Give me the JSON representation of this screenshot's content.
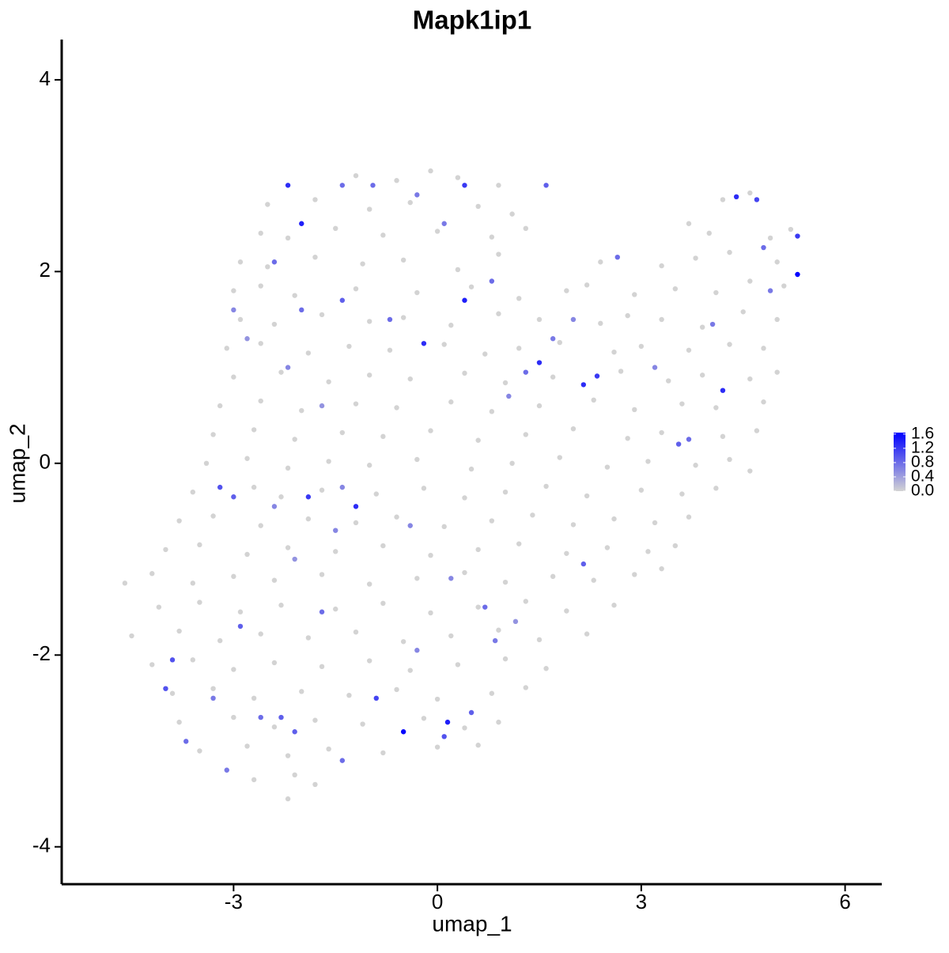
{
  "chart_data": {
    "type": "scatter",
    "title": "Mapk1ip1",
    "x_label": "umap_1",
    "y_label": "umap_2",
    "xlim": [
      -5.53,
      6.54
    ],
    "ylim": [
      -4.39,
      4.42
    ],
    "xticks": [
      -3,
      0,
      3,
      6
    ],
    "yticks": [
      -4,
      -2,
      0,
      2,
      4
    ],
    "low_color": "#d3d3d3",
    "high_color": "#0000ff",
    "colorlim": [
      0,
      1.64
    ],
    "colorticks": [
      {
        "value": 0,
        "label": "0.0"
      },
      0.4,
      0.8,
      1.2,
      1.6
    ],
    "x": [
      -1.2,
      -0.6,
      -0.1,
      0.3,
      0.9,
      -2.5,
      -1.8,
      -1.0,
      -0.4,
      0.6,
      1.1,
      4.2,
      4.6,
      -2.6,
      -2.2,
      -1.5,
      -0.8,
      0.0,
      0.8,
      1.3,
      3.7,
      4.0,
      4.9,
      5.2,
      -2.9,
      -2.5,
      -1.8,
      -1.1,
      -0.5,
      0.3,
      0.9,
      2.4,
      3.3,
      3.8,
      4.3,
      5.0,
      -3.0,
      -2.6,
      -2.1,
      -1.2,
      -0.3,
      0.5,
      1.2,
      1.9,
      2.2,
      2.9,
      3.5,
      4.1,
      4.6,
      5.1,
      -2.9,
      -2.4,
      -1.7,
      -1.0,
      -0.5,
      0.2,
      0.9,
      1.5,
      2.4,
      2.8,
      3.3,
      3.9,
      4.5,
      5.0,
      -3.1,
      -2.6,
      -1.9,
      -1.3,
      -0.7,
      0.1,
      0.7,
      1.2,
      1.8,
      2.6,
      3.0,
      3.7,
      4.3,
      4.8,
      -3.0,
      -2.3,
      -1.6,
      -1.0,
      -0.4,
      0.4,
      1.0,
      1.7,
      2.7,
      3.4,
      3.9,
      4.6,
      5.0,
      -3.2,
      -2.6,
      -2.0,
      -1.2,
      -0.6,
      0.2,
      0.8,
      1.5,
      2.3,
      2.9,
      3.6,
      4.1,
      4.8,
      -3.3,
      -2.7,
      -2.1,
      -1.4,
      -0.8,
      -0.1,
      0.6,
      1.3,
      2.0,
      2.8,
      3.3,
      4.2,
      4.7,
      -3.4,
      -2.8,
      -2.2,
      -1.6,
      -1.0,
      -0.3,
      0.5,
      1.1,
      1.8,
      2.5,
      3.1,
      3.8,
      4.3,
      4.6,
      -3.6,
      -2.7,
      -2.3,
      -1.7,
      -0.9,
      -0.2,
      0.4,
      1.0,
      1.6,
      2.2,
      3.0,
      3.6,
      4.1,
      -3.8,
      -3.3,
      -2.6,
      -1.9,
      -1.2,
      -0.6,
      0.1,
      0.8,
      1.4,
      2.0,
      2.6,
      3.2,
      3.7,
      -4.0,
      -3.5,
      -2.8,
      -2.2,
      -1.5,
      -0.8,
      -0.1,
      0.6,
      1.2,
      1.9,
      2.5,
      3.1,
      3.5,
      -4.6,
      -4.2,
      -3.6,
      -3.0,
      -2.4,
      -1.7,
      -1.0,
      -0.3,
      0.4,
      1.0,
      1.7,
      2.3,
      2.9,
      3.3,
      -4.1,
      -3.5,
      -2.9,
      -2.3,
      -1.5,
      -0.8,
      -0.1,
      0.6,
      1.3,
      1.9,
      2.6,
      -4.5,
      -3.8,
      -3.2,
      -2.6,
      -1.9,
      -1.2,
      -0.5,
      0.2,
      0.9,
      1.5,
      2.2,
      -4.2,
      -3.6,
      -3.0,
      -2.4,
      -1.7,
      -1.0,
      -0.4,
      0.3,
      1.0,
      1.6,
      -3.9,
      -3.3,
      -2.7,
      -2.0,
      -1.3,
      -0.6,
      0.0,
      0.8,
      1.3,
      -3.8,
      -3.0,
      -2.4,
      -1.8,
      -1.1,
      -0.2,
      0.4,
      0.9,
      -3.5,
      -2.8,
      -2.2,
      -1.6,
      -0.8,
      0.0,
      0.6,
      -2.7,
      -2.1,
      -1.8,
      -2.2,
      -2.2,
      -2.0,
      0.4,
      1.6,
      0.4,
      -0.2,
      1.5,
      2.15,
      2.35,
      4.2,
      5.3,
      5.3,
      4.4,
      4.7,
      -1.2,
      -1.9,
      -0.5,
      0.15,
      0.1,
      -0.9,
      -3.2,
      -3.0,
      -2.9,
      -3.9,
      -4.0,
      -2.3,
      -2.6,
      -2.1,
      0.5,
      0.85,
      2.15,
      3.55,
      3.7,
      0.7,
      -1.7,
      -2.4,
      -2.0,
      -1.4,
      -0.7,
      0.8,
      1.3,
      1.05,
      1.7,
      2.0,
      2.65,
      3.2,
      4.05,
      4.8,
      4.9,
      -1.4,
      -0.3,
      -0.95,
      0.1,
      -3.0,
      -2.8,
      -2.2,
      -1.7,
      -2.4,
      -2.1,
      -1.5,
      -0.4,
      0.2,
      -0.3,
      1.15,
      -3.3,
      -3.7,
      -3.1,
      -1.4,
      -1.4
    ],
    "y": [
      3.0,
      2.95,
      3.05,
      2.98,
      2.9,
      2.7,
      2.75,
      2.65,
      2.72,
      2.68,
      2.6,
      2.75,
      2.82,
      2.4,
      2.35,
      2.45,
      2.38,
      2.42,
      2.36,
      2.45,
      2.5,
      2.4,
      2.35,
      2.44,
      2.1,
      2.05,
      2.15,
      2.08,
      2.12,
      2.02,
      2.18,
      2.1,
      2.06,
      2.14,
      2.2,
      2.1,
      1.8,
      1.85,
      1.75,
      1.82,
      1.78,
      1.84,
      1.72,
      1.8,
      1.86,
      1.76,
      1.82,
      1.78,
      1.9,
      1.85,
      1.5,
      1.45,
      1.55,
      1.48,
      1.52,
      1.44,
      1.56,
      1.5,
      1.46,
      1.54,
      1.5,
      1.42,
      1.58,
      1.5,
      1.2,
      1.25,
      1.15,
      1.22,
      1.18,
      1.24,
      1.14,
      1.2,
      1.26,
      1.16,
      1.22,
      1.18,
      1.24,
      1.2,
      0.9,
      0.95,
      0.85,
      0.92,
      0.88,
      0.94,
      0.84,
      0.9,
      0.96,
      0.86,
      0.92,
      0.88,
      0.95,
      0.6,
      0.65,
      0.55,
      0.62,
      0.58,
      0.64,
      0.54,
      0.6,
      0.66,
      0.56,
      0.62,
      0.58,
      0.64,
      0.3,
      0.35,
      0.25,
      0.32,
      0.28,
      0.34,
      0.24,
      0.3,
      0.36,
      0.26,
      0.32,
      0.28,
      0.34,
      0.0,
      0.05,
      -0.05,
      0.02,
      -0.02,
      0.04,
      -0.06,
      0.0,
      0.06,
      -0.04,
      0.02,
      -0.02,
      0.04,
      -0.08,
      -0.3,
      -0.25,
      -0.35,
      -0.28,
      -0.32,
      -0.26,
      -0.36,
      -0.3,
      -0.24,
      -0.34,
      -0.28,
      -0.32,
      -0.26,
      -0.6,
      -0.55,
      -0.65,
      -0.58,
      -0.62,
      -0.56,
      -0.66,
      -0.6,
      -0.54,
      -0.64,
      -0.58,
      -0.62,
      -0.56,
      -0.9,
      -0.85,
      -0.95,
      -0.88,
      -0.92,
      -0.86,
      -0.96,
      -0.9,
      -0.84,
      -0.94,
      -0.88,
      -0.92,
      -0.86,
      -1.25,
      -1.15,
      -1.25,
      -1.18,
      -1.22,
      -1.16,
      -1.26,
      -1.2,
      -1.14,
      -1.24,
      -1.18,
      -1.22,
      -1.16,
      -1.1,
      -1.5,
      -1.45,
      -1.55,
      -1.48,
      -1.52,
      -1.46,
      -1.56,
      -1.5,
      -1.44,
      -1.54,
      -1.48,
      -1.8,
      -1.75,
      -1.85,
      -1.78,
      -1.82,
      -1.76,
      -1.86,
      -1.8,
      -1.74,
      -1.84,
      -1.78,
      -2.1,
      -2.05,
      -2.15,
      -2.08,
      -2.12,
      -2.06,
      -2.16,
      -2.1,
      -2.04,
      -2.14,
      -2.4,
      -2.35,
      -2.45,
      -2.38,
      -2.42,
      -2.36,
      -2.46,
      -2.4,
      -2.34,
      -2.7,
      -2.65,
      -2.75,
      -2.68,
      -2.72,
      -2.66,
      -2.76,
      -2.7,
      -3.0,
      -2.95,
      -3.05,
      -2.98,
      -3.02,
      -2.96,
      -2.94,
      -3.3,
      -3.25,
      -3.35,
      -3.5,
      2.9,
      2.5,
      2.9,
      2.9,
      1.7,
      1.25,
      1.05,
      0.82,
      0.91,
      0.76,
      1.97,
      2.37,
      2.78,
      2.75,
      -0.45,
      -0.35,
      -2.8,
      -2.7,
      -2.85,
      -2.45,
      -0.25,
      -0.35,
      -1.7,
      -2.05,
      -2.35,
      -2.65,
      -2.65,
      -2.8,
      -2.6,
      -1.85,
      -1.05,
      0.2,
      0.25,
      -1.5,
      -1.55,
      2.1,
      1.6,
      1.7,
      1.5,
      1.9,
      0.95,
      0.7,
      1.3,
      1.5,
      2.15,
      1.0,
      1.45,
      2.25,
      1.8,
      2.9,
      2.8,
      2.9,
      2.5,
      1.6,
      1.3,
      1.0,
      0.6,
      -0.45,
      -1.0,
      -0.7,
      -0.65,
      -1.2,
      -1.95,
      -1.65,
      -2.45,
      -2.9,
      -3.2,
      -3.1,
      -0.25
    ],
    "values": [
      0,
      0,
      0,
      0,
      0,
      0,
      0,
      0,
      0,
      0,
      0,
      0,
      0,
      0,
      0,
      0,
      0,
      0,
      0,
      0,
      0,
      0,
      0,
      0,
      0,
      0,
      0,
      0,
      0,
      0,
      0,
      0,
      0,
      0,
      0,
      0,
      0,
      0,
      0,
      0,
      0,
      0,
      0,
      0,
      0,
      0,
      0,
      0,
      0,
      0,
      0,
      0,
      0,
      0,
      0,
      0,
      0,
      0,
      0,
      0,
      0,
      0,
      0,
      0,
      0,
      0,
      0,
      0,
      0,
      0,
      0,
      0,
      0,
      0,
      0,
      0,
      0,
      0,
      0,
      0,
      0,
      0,
      0,
      0,
      0,
      0,
      0,
      0,
      0,
      0,
      0,
      0,
      0,
      0,
      0,
      0,
      0,
      0,
      0,
      0,
      0,
      0,
      0,
      0,
      0,
      0,
      0,
      0,
      0,
      0,
      0,
      0,
      0,
      0,
      0,
      0,
      0,
      0,
      0,
      0,
      0,
      0,
      0,
      0,
      0,
      0,
      0,
      0,
      0,
      0,
      0,
      0,
      0,
      0,
      0,
      0,
      0,
      0,
      0,
      0,
      0,
      0,
      0,
      0,
      0,
      0,
      0,
      0,
      0,
      0,
      0,
      0,
      0,
      0,
      0,
      0,
      0,
      0,
      0,
      0,
      0,
      0,
      0,
      0,
      0,
      0,
      0,
      0,
      0,
      0,
      0,
      0,
      0,
      0,
      0,
      0,
      0,
      0,
      0,
      0,
      0,
      0,
      0,
      0,
      0,
      0,
      0,
      0,
      0,
      0,
      0,
      0,
      0,
      0,
      0,
      0,
      0,
      0,
      0,
      0,
      0,
      0,
      0,
      0,
      0,
      0,
      0,
      0,
      0,
      0,
      0,
      0,
      0,
      0,
      0,
      0,
      0,
      0,
      0,
      0,
      0,
      0,
      0,
      0,
      0,
      0,
      0,
      0,
      0,
      0,
      0,
      0,
      0,
      0,
      0,
      0,
      0,
      0,
      0,
      0,
      0,
      0,
      0,
      0,
      1.3,
      1.4,
      1.2,
      0.9,
      1.4,
      1.3,
      1.3,
      1.3,
      1.2,
      1.3,
      1.64,
      1.2,
      1.3,
      1.1,
      1.3,
      1.2,
      1.6,
      1.4,
      1.0,
      1.1,
      1.0,
      0.9,
      0.9,
      1.0,
      1.0,
      0.9,
      0.8,
      0.9,
      0.9,
      0.7,
      0.9,
      0.9,
      0.8,
      0.8,
      0.8,
      0.8,
      0.8,
      0.9,
      0.8,
      0.8,
      0.8,
      0.6,
      0.7,
      0.6,
      0.8,
      0.6,
      0.7,
      0.8,
      0.7,
      0.8,
      0.7,
      0.8,
      0.7,
      0.6,
      0.5,
      0.6,
      0.5,
      0.6,
      0.5,
      0.6,
      0.6,
      0.6,
      0.6,
      0.5,
      0.7,
      0.8,
      0.7,
      0.8,
      0.6
    ]
  }
}
